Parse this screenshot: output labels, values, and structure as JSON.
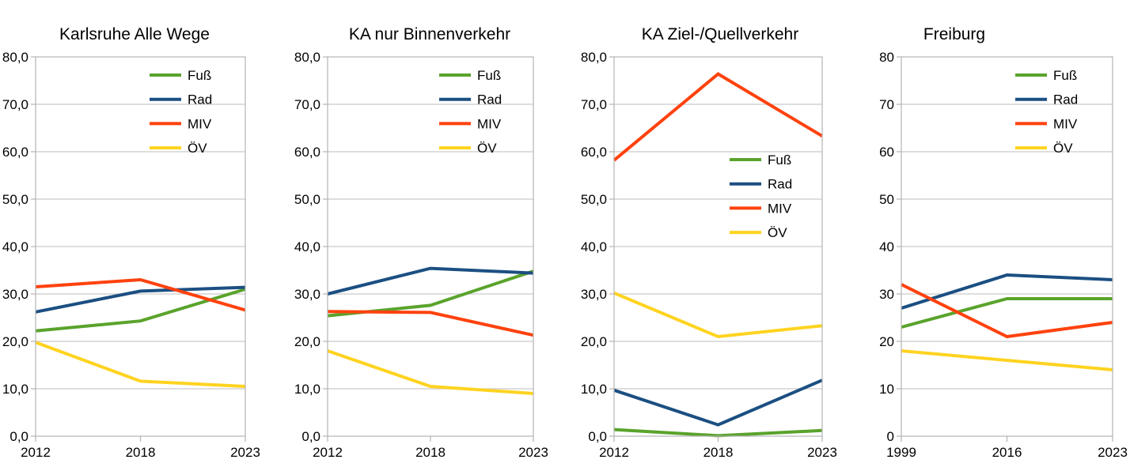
{
  "style": {
    "background": "#FFFFFF",
    "grid_color": "#C9C9C9",
    "axis_color": "#B3B3B3",
    "text_color": "#000000"
  },
  "chart_data": [
    {
      "type": "line",
      "title": "Karlsruhe Alle Wege",
      "categories": [
        "2012",
        "2018",
        "2023"
      ],
      "series": [
        {
          "name": "Fuß",
          "color": "#5AA32C",
          "values": [
            22.2,
            24.3,
            31.0
          ]
        },
        {
          "name": "Rad",
          "color": "#1B4F82",
          "values": [
            26.2,
            30.6,
            31.4
          ]
        },
        {
          "name": "MIV",
          "color": "#FF420E",
          "values": [
            31.5,
            33.0,
            26.6
          ]
        },
        {
          "name": "ÖV",
          "color": "#FFD320",
          "values": [
            19.8,
            11.6,
            10.5
          ]
        }
      ],
      "ylim": [
        0,
        80
      ],
      "ytick_step": 10,
      "ytick_labels": [
        "0,0",
        "10,0",
        "20,0",
        "30,0",
        "40,0",
        "50,0",
        "60,0",
        "70,0",
        "80,0"
      ],
      "grid": true,
      "legend_position": "top-right"
    },
    {
      "type": "line",
      "title": "KA nur Binnenverkehr",
      "categories": [
        "2012",
        "2018",
        "2023"
      ],
      "series": [
        {
          "name": "Fuß",
          "color": "#5AA32C",
          "values": [
            25.4,
            27.6,
            34.8
          ]
        },
        {
          "name": "Rad",
          "color": "#1B4F82",
          "values": [
            30.0,
            35.4,
            34.4
          ]
        },
        {
          "name": "MIV",
          "color": "#FF420E",
          "values": [
            26.3,
            26.1,
            21.3
          ]
        },
        {
          "name": "ÖV",
          "color": "#FFD320",
          "values": [
            18.0,
            10.5,
            9.0
          ]
        }
      ],
      "ylim": [
        0,
        80
      ],
      "ytick_step": 10,
      "ytick_labels": [
        "0,0",
        "10,0",
        "20,0",
        "30,0",
        "40,0",
        "50,0",
        "60,0",
        "70,0",
        "80,0"
      ],
      "grid": true,
      "legend_position": "top-right"
    },
    {
      "type": "line",
      "title": "KA Ziel-/Quellverkehr",
      "categories": [
        "2012",
        "2018",
        "2023"
      ],
      "series": [
        {
          "name": "Fuß",
          "color": "#5AA32C",
          "values": [
            1.4,
            0.1,
            1.2
          ]
        },
        {
          "name": "Rad",
          "color": "#1B4F82",
          "values": [
            9.7,
            2.4,
            11.8
          ]
        },
        {
          "name": "MIV",
          "color": "#FF420E",
          "values": [
            58.2,
            76.4,
            63.3
          ]
        },
        {
          "name": "ÖV",
          "color": "#FFD320",
          "values": [
            30.2,
            21.0,
            23.3
          ]
        }
      ],
      "ylim": [
        0,
        80
      ],
      "ytick_step": 10,
      "ytick_labels": [
        "0,0",
        "10,0",
        "20,0",
        "30,0",
        "40,0",
        "50,0",
        "60,0",
        "70,0",
        "80,0"
      ],
      "grid": true,
      "legend_position": "middle-right"
    },
    {
      "type": "line",
      "title": "Freiburg",
      "categories": [
        "1999",
        "2016",
        "2023"
      ],
      "series": [
        {
          "name": "Fuß",
          "color": "#5AA32C",
          "values": [
            23,
            29,
            29
          ]
        },
        {
          "name": "Rad",
          "color": "#1B4F82",
          "values": [
            27,
            34,
            33
          ]
        },
        {
          "name": "MIV",
          "color": "#FF420E",
          "values": [
            32,
            21,
            24
          ]
        },
        {
          "name": "ÖV",
          "color": "#FFD320",
          "values": [
            18,
            16,
            14
          ]
        }
      ],
      "ylim": [
        0,
        80
      ],
      "ytick_step": 10,
      "ytick_labels": [
        "0",
        "10",
        "20",
        "30",
        "40",
        "50",
        "60",
        "70",
        "80"
      ],
      "grid": true,
      "legend_position": "top-right"
    }
  ]
}
